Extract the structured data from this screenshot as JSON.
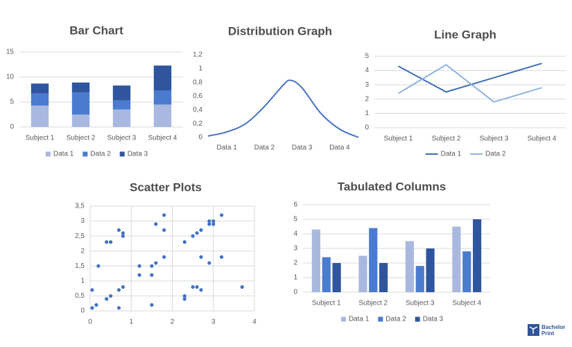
{
  "chart_data": [
    {
      "type": "bar",
      "stacked": true,
      "title": "Bar Chart",
      "categories": [
        "Subject 1",
        "Subject 2",
        "Subject 3",
        "Subject 4"
      ],
      "series": [
        {
          "name": "Data 1",
          "color": "#a9b8de",
          "values": [
            4.3,
            2.5,
            3.5,
            4.5
          ]
        },
        {
          "name": "Data 2",
          "color": "#4a7bd0",
          "values": [
            2.4,
            4.4,
            1.8,
            2.8
          ]
        },
        {
          "name": "Data 3",
          "color": "#2f559e",
          "values": [
            2,
            2,
            3,
            5
          ]
        }
      ],
      "ylim": [
        0,
        15
      ],
      "yticks": [
        0,
        5,
        10,
        15
      ],
      "grid": true,
      "legend": "bottom"
    },
    {
      "type": "line",
      "smooth": true,
      "title": "Distribution Graph",
      "color": "#4472c4",
      "x": [
        0,
        0.5,
        1,
        1.5,
        2,
        2.2,
        2.5,
        3,
        3.5,
        4
      ],
      "values": [
        0.02,
        0.08,
        0.2,
        0.45,
        0.76,
        0.83,
        0.72,
        0.35,
        0.12,
        0
      ],
      "xlim": [
        0,
        4
      ],
      "xticks": [
        {
          "value": 0.5,
          "label": "Data 1"
        },
        {
          "value": 1.5,
          "label": "Data 2"
        },
        {
          "value": 2.5,
          "label": "Data 3"
        },
        {
          "value": 3.5,
          "label": "Data 4"
        }
      ],
      "ylim": [
        0,
        1.2
      ],
      "yticks": [
        0,
        {
          "value": 0.2,
          "label": "0,2"
        },
        {
          "value": 0.4,
          "label": "0,4"
        },
        {
          "value": 0.6,
          "label": "0,6"
        },
        {
          "value": 0.8,
          "label": "0,8"
        },
        1,
        {
          "value": 1.2,
          "label": "1,2"
        }
      ],
      "grid": false
    },
    {
      "type": "line",
      "title": "Line Graph",
      "categories": [
        "Subject 1",
        "Subject 2",
        "Subject 3",
        "Subject 4"
      ],
      "series": [
        {
          "name": "Data 1",
          "color": "#3c6db8",
          "values": [
            4.3,
            2.5,
            3.5,
            4.5
          ]
        },
        {
          "name": "Data 2",
          "color": "#8fb2e0",
          "values": [
            2.4,
            4.4,
            1.8,
            2.8
          ]
        }
      ],
      "ylim": [
        0,
        5
      ],
      "yticks": [
        0,
        1,
        2,
        3,
        4,
        5
      ],
      "grid": true,
      "legend": "bottom"
    },
    {
      "type": "scatter",
      "title": "Scatter Plots",
      "color": "#4472c4",
      "x": [
        0.05,
        0.05,
        0.15,
        0.2,
        0.4,
        0.4,
        0.5,
        0.5,
        0.7,
        0.7,
        0.7,
        0.8,
        0.8,
        0.8,
        1.2,
        1.2,
        1.5,
        1.5,
        1.5,
        1.6,
        1.6,
        1.8,
        1.8,
        1.8,
        2.3,
        2.3,
        2.3,
        2.5,
        2.5,
        2.6,
        2.6,
        2.7,
        2.7,
        2.7,
        2.9,
        2.9,
        2.9,
        3.0,
        3.0,
        3.2,
        3.2,
        3.7
      ],
      "y": [
        0.7,
        0.1,
        0.2,
        1.5,
        0.4,
        2.3,
        2.3,
        0.5,
        2.7,
        0.7,
        0.1,
        2.6,
        2.5,
        0.8,
        1.5,
        1.2,
        1.5,
        1.2,
        0.2,
        2.9,
        1.6,
        3.2,
        2.7,
        1.8,
        2.3,
        0.5,
        0.4,
        2.5,
        0.8,
        2.6,
        0.8,
        2.7,
        1.8,
        0.7,
        2.9,
        3.0,
        1.6,
        3.0,
        2.9,
        3.2,
        1.8,
        0.8
      ],
      "xlim": [
        0,
        4
      ],
      "xticks": [
        0,
        1,
        2,
        3,
        4
      ],
      "ylim": [
        0,
        3.5
      ],
      "yticks": [
        0,
        {
          "value": 0.5,
          "label": "0,5"
        },
        1,
        {
          "value": 1.5,
          "label": "1,5"
        },
        2,
        {
          "value": 2.5,
          "label": "2,5"
        },
        3,
        {
          "value": 3.5,
          "label": "3,5"
        }
      ],
      "grid": true
    },
    {
      "type": "bar",
      "stacked": false,
      "title": "Tabulated Columns",
      "categories": [
        "Subject 1",
        "Subject 2",
        "Subject 3",
        "Subject 4"
      ],
      "series": [
        {
          "name": "Data 1",
          "color": "#a9b8de",
          "values": [
            4.3,
            2.5,
            3.5,
            4.5
          ]
        },
        {
          "name": "Data 2",
          "color": "#4a7bd0",
          "values": [
            2.4,
            4.4,
            1.8,
            2.8
          ]
        },
        {
          "name": "Data 3",
          "color": "#2f559e",
          "values": [
            2,
            2,
            3,
            5
          ]
        }
      ],
      "ylim": [
        0,
        6
      ],
      "yticks": [
        0,
        1,
        2,
        3,
        4,
        5,
        6
      ],
      "grid": true,
      "legend": "bottom"
    }
  ],
  "watermark": {
    "line1": "Bachelor",
    "line2": "Print"
  }
}
